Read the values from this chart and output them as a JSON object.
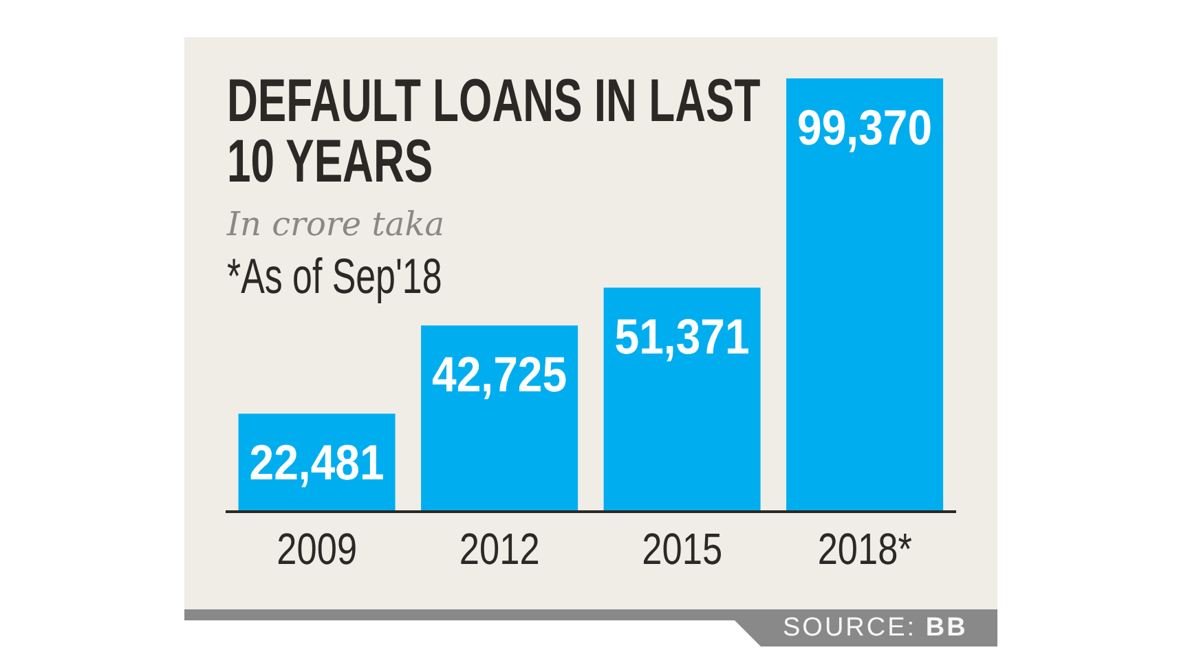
{
  "chart_data": {
    "type": "bar",
    "title": "DEFAULT LOANS IN LAST 10 YEARS",
    "subtitle": "In crore taka",
    "categories": [
      "2009",
      "2012",
      "2015",
      "2018*"
    ],
    "values": [
      22481,
      42725,
      51371,
      99370
    ],
    "color": "#00aeef",
    "value_labels": [
      "22,481",
      "42,725",
      "51,371",
      "99,370"
    ],
    "annotations": [
      "*As of Sep'18",
      "SOURCE: BB"
    ]
  }
}
